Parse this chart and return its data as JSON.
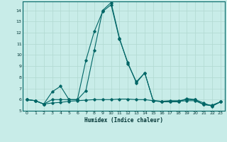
{
  "xlabel": "Humidex (Indice chaleur)",
  "background_color": "#c8ece8",
  "grid_color": "#b0d8d0",
  "line_color": "#006666",
  "xlim": [
    -0.5,
    23.5
  ],
  "ylim": [
    5,
    14.8
  ],
  "yticks": [
    5,
    6,
    7,
    8,
    9,
    10,
    11,
    12,
    13,
    14
  ],
  "xticks": [
    0,
    1,
    2,
    3,
    4,
    5,
    6,
    7,
    8,
    9,
    10,
    11,
    12,
    13,
    14,
    15,
    16,
    17,
    18,
    19,
    20,
    21,
    22,
    23
  ],
  "series1_x": [
    0,
    1,
    2,
    3,
    4,
    5,
    6,
    7,
    8,
    9,
    10,
    11,
    12,
    13,
    14,
    15,
    16,
    17,
    18,
    19,
    20,
    21,
    22,
    23
  ],
  "series1_y": [
    6.0,
    5.9,
    5.6,
    6.7,
    7.2,
    6.0,
    6.0,
    9.5,
    12.1,
    13.9,
    14.5,
    11.4,
    9.3,
    7.5,
    8.4,
    5.9,
    5.8,
    5.8,
    5.8,
    6.1,
    6.0,
    5.7,
    5.4,
    5.8
  ],
  "series2_x": [
    0,
    1,
    2,
    3,
    4,
    5,
    6,
    7,
    8,
    9,
    10,
    11,
    12,
    13,
    14,
    15,
    16,
    17,
    18,
    19,
    20,
    21,
    22,
    23
  ],
  "series2_y": [
    6.0,
    5.9,
    5.6,
    6.0,
    6.0,
    6.0,
    6.0,
    6.8,
    10.4,
    14.0,
    14.7,
    11.5,
    9.2,
    7.6,
    8.4,
    5.9,
    5.85,
    5.9,
    5.9,
    6.0,
    6.0,
    5.55,
    5.5,
    5.8
  ],
  "series3_x": [
    0,
    1,
    2,
    3,
    4,
    5,
    6,
    7,
    8,
    9,
    10,
    11,
    12,
    13,
    14,
    15,
    16,
    17,
    18,
    19,
    20,
    21,
    22,
    23
  ],
  "series3_y": [
    6.0,
    5.9,
    5.6,
    5.7,
    5.75,
    5.85,
    5.9,
    5.95,
    6.0,
    6.0,
    6.0,
    6.05,
    6.05,
    6.0,
    6.0,
    5.9,
    5.85,
    5.85,
    5.85,
    5.9,
    5.9,
    5.55,
    5.45,
    5.8
  ]
}
